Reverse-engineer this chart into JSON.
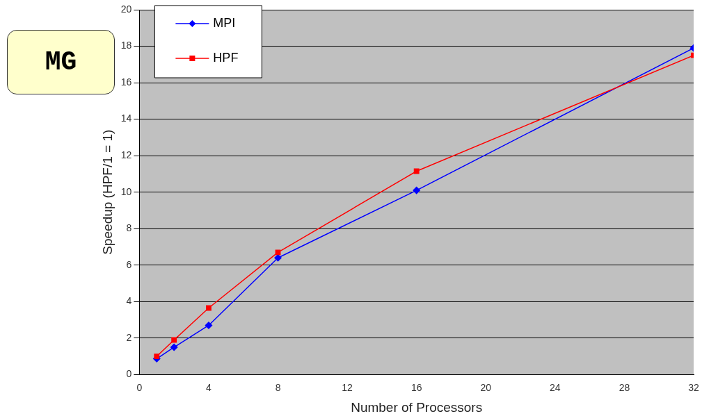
{
  "chart_data": {
    "type": "line",
    "xlabel": "Number of Processors",
    "ylabel": "Speedup (HPF/1 = 1)",
    "annotations": [
      "MG"
    ],
    "x": [
      1,
      2,
      4,
      8,
      16,
      32
    ],
    "series": [
      {
        "name": "MPI",
        "color": "#0000ff",
        "marker": "diamond",
        "values": [
          0.87,
          1.5,
          2.7,
          6.4,
          10.1,
          17.9
        ]
      },
      {
        "name": "HPF",
        "color": "#ff0000",
        "marker": "square",
        "values": [
          1.0,
          1.9,
          3.65,
          6.7,
          11.15,
          17.5
        ]
      }
    ],
    "xlim": [
      0,
      32
    ],
    "xticks": [
      0,
      4,
      8,
      12,
      16,
      20,
      24,
      28,
      32
    ],
    "ylim": [
      0,
      20
    ],
    "yticks": [
      0,
      2,
      4,
      6,
      8,
      10,
      12,
      14,
      16,
      18,
      20
    ],
    "grid": "y",
    "legend": "top left",
    "line_style": "solid"
  }
}
